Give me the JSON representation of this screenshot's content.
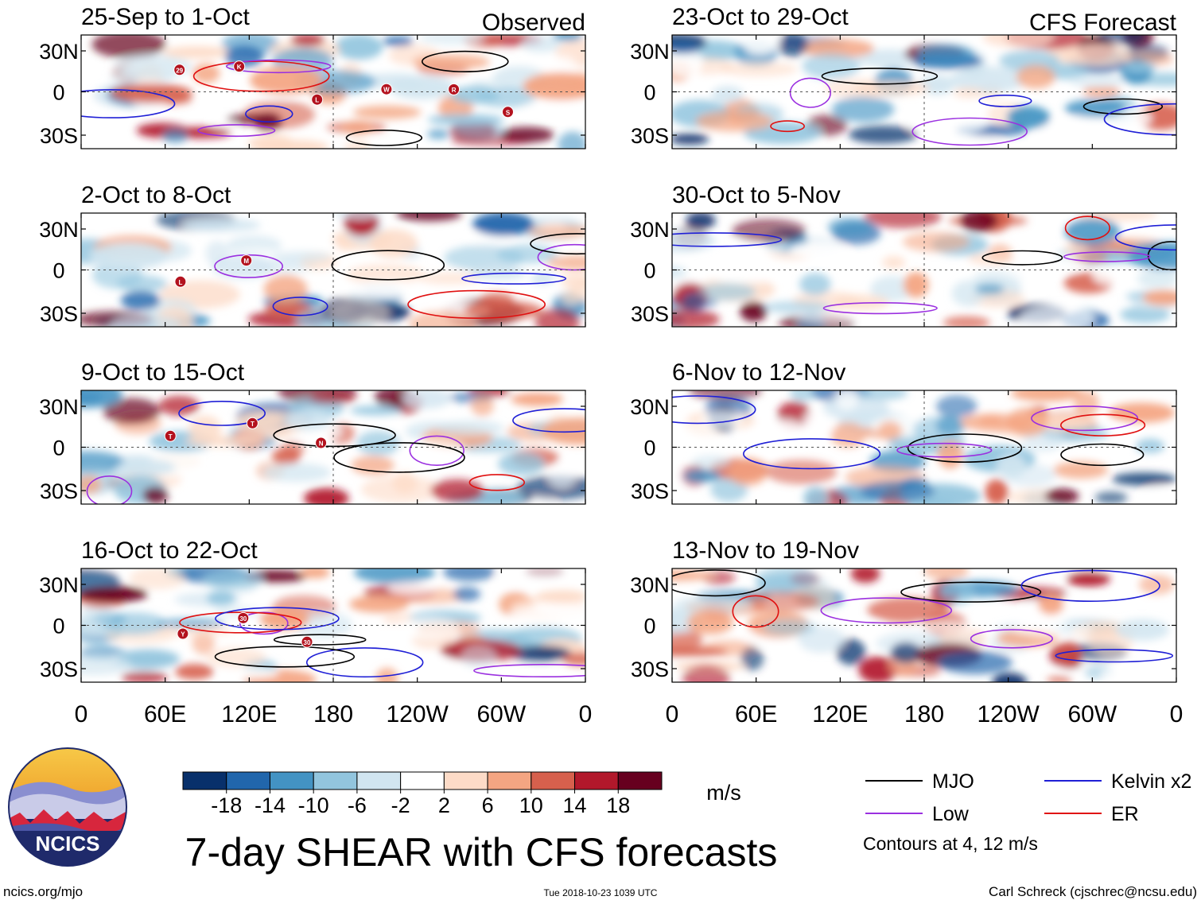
{
  "chart_data": {
    "type": "heatmap",
    "title": "7-day SHEAR with CFS forecasts",
    "units": "m/s",
    "variable": "SHEAR anomaly",
    "x_ticks": [
      "0",
      "60E",
      "120E",
      "180",
      "120W",
      "60W",
      "0"
    ],
    "y_ticks": [
      "30N",
      "0",
      "30S"
    ],
    "colorbar": {
      "tick_labels": [
        "-18",
        "-14",
        "-10",
        "-6",
        "-2",
        "2",
        "6",
        "10",
        "14",
        "18"
      ],
      "colors": [
        "#08306b",
        "#2166ac",
        "#4393c3",
        "#92c5de",
        "#d1e5f0",
        "#ffffff",
        "#fddbc7",
        "#f4a582",
        "#d6604d",
        "#b2182b",
        "#67001f"
      ]
    },
    "panels": [
      {
        "period": "25-Sep to 1-Oct",
        "tag": "Observed",
        "column": "observed"
      },
      {
        "period": "2-Oct to 8-Oct",
        "tag": "",
        "column": "observed"
      },
      {
        "period": "9-Oct to 15-Oct",
        "tag": "",
        "column": "observed"
      },
      {
        "period": "16-Oct to 22-Oct",
        "tag": "",
        "column": "observed"
      },
      {
        "period": "23-Oct to 29-Oct",
        "tag": "CFS Forecast",
        "column": "forecast"
      },
      {
        "period": "30-Oct to 5-Nov",
        "tag": "",
        "column": "forecast"
      },
      {
        "period": "6-Nov to 12-Nov",
        "tag": "",
        "column": "forecast"
      },
      {
        "period": "13-Nov to 19-Nov",
        "tag": "",
        "column": "forecast"
      }
    ],
    "legend": {
      "items": [
        {
          "label": "MJO",
          "color": "#000000"
        },
        {
          "label": "Kelvin x2",
          "color": "#1f1fd6"
        },
        {
          "label": "Low",
          "color": "#9b30e0"
        },
        {
          "label": "ER",
          "color": "#e01010"
        }
      ],
      "note": "Contours at 4, 12 m/s"
    },
    "storm_markers": [
      {
        "panel": 0,
        "labels": [
          "29",
          "K",
          "L",
          "W",
          "R",
          "S"
        ]
      },
      {
        "panel": 1,
        "labels": [
          "L",
          "M"
        ]
      },
      {
        "panel": 2,
        "labels": [
          "T",
          "T",
          "N"
        ]
      },
      {
        "panel": 3,
        "labels": [
          "Y",
          "30",
          "30"
        ]
      }
    ]
  },
  "logo": {
    "text": "NCICS"
  },
  "footer": {
    "url": "ncics.org/mjo",
    "timestamp": "Tue 2018-10-23 1039 UTC",
    "credit": "Carl Schreck (cjschrec@ncsu.edu)"
  }
}
